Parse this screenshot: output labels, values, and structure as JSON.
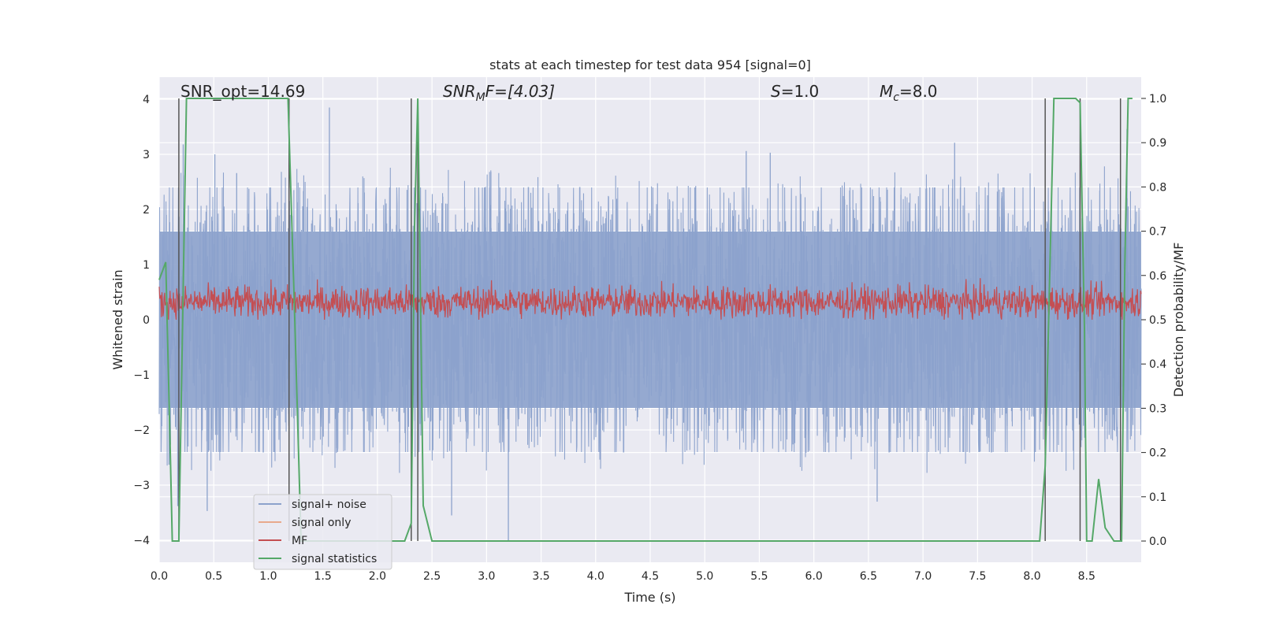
{
  "chart_data": {
    "type": "line",
    "title": "stats at each timestep for test data 954 [signal=0]",
    "xlabel": "Time (s)",
    "ylabel": "Whitened strain",
    "y2label": "Detection probability/MF",
    "xlim": [
      0.0,
      9.0
    ],
    "ylim": [
      -4.4,
      4.4
    ],
    "y2lim": [
      -0.048,
      1.048
    ],
    "grid": true,
    "legend_position": "lower-left",
    "x_ticks": [
      0.0,
      0.5,
      1.0,
      1.5,
      2.0,
      2.5,
      3.0,
      3.5,
      4.0,
      4.5,
      5.0,
      5.5,
      6.0,
      6.5,
      7.0,
      7.5,
      8.0,
      8.5
    ],
    "x_tick_labels": [
      "0.0",
      "0.5",
      "1.0",
      "1.5",
      "2.0",
      "2.5",
      "3.0",
      "3.5",
      "4.0",
      "4.5",
      "5.0",
      "5.5",
      "6.0",
      "6.5",
      "7.0",
      "7.5",
      "8.0",
      "8.5"
    ],
    "y_ticks": [
      -4,
      -3,
      -2,
      -1,
      0,
      1,
      2,
      3,
      4
    ],
    "y_tick_labels": [
      "−4",
      "−3",
      "−2",
      "−1",
      "0",
      "1",
      "2",
      "3",
      "4"
    ],
    "y2_ticks": [
      0.0,
      0.1,
      0.2,
      0.3,
      0.4,
      0.5,
      0.6,
      0.7,
      0.8,
      0.9,
      1.0
    ],
    "y2_tick_labels": [
      "0.0",
      "0.1",
      "0.2",
      "0.3",
      "0.4",
      "0.5",
      "0.6",
      "0.7",
      "0.8",
      "0.9",
      "1.0"
    ],
    "annotations": [
      {
        "main": "SNR_opt=14.69",
        "sub": "",
        "rest": ""
      },
      {
        "main": "SNR",
        "sub": "M",
        "rest": "F=[4.03]"
      },
      {
        "main": "S",
        "sub": "",
        "rest": "=1.0"
      },
      {
        "main": "M",
        "sub": "c",
        "rest": "=8.0"
      }
    ],
    "legend": [
      {
        "label": "signal+ noise",
        "color": "#8ca2cc"
      },
      {
        "label": "signal only",
        "color": "#e8a98c"
      },
      {
        "label": "MF",
        "color": "#c44e52"
      },
      {
        "label": "signal statistics",
        "color": "#55a868"
      }
    ],
    "vlines_x": [
      0.18,
      1.19,
      2.31,
      2.37,
      8.12,
      8.44,
      8.81
    ],
    "series": [
      {
        "name": "signal+ noise",
        "axis": "left",
        "color": "#8ca2cc",
        "envelope_amplitude": 1.6,
        "peak_values": [
          {
            "x": 0.09,
            "y": -2.63
          },
          {
            "x": 0.17,
            "y": -3.38
          },
          {
            "x": 0.22,
            "y": 3.18
          },
          {
            "x": 0.44,
            "y": -3.47
          },
          {
            "x": 0.51,
            "y": 3.0
          },
          {
            "x": 0.71,
            "y": 2.66
          },
          {
            "x": 1.56,
            "y": 3.85
          },
          {
            "x": 2.68,
            "y": -3.55
          },
          {
            "x": 3.2,
            "y": -4.0
          },
          {
            "x": 5.38,
            "y": 3.06
          },
          {
            "x": 5.6,
            "y": 3.03
          },
          {
            "x": 6.58,
            "y": -3.3
          },
          {
            "x": 7.29,
            "y": 3.21
          },
          {
            "x": 8.87,
            "y": 3.46
          }
        ]
      },
      {
        "name": "MF",
        "axis": "right",
        "color": "#c44e52",
        "mean": 0.54,
        "range": [
          0.5,
          0.61
        ]
      },
      {
        "name": "signal statistics",
        "axis": "right",
        "color": "#55a868",
        "x": [
          0.0,
          0.06,
          0.1,
          0.12,
          0.18,
          0.25,
          0.4,
          0.8,
          1.18,
          1.24,
          1.3,
          2.25,
          2.31,
          2.34,
          2.37,
          2.42,
          2.5,
          3.0,
          5.0,
          7.0,
          8.07,
          8.12,
          8.2,
          8.25,
          8.35,
          8.4,
          8.44,
          8.48,
          8.5,
          8.55,
          8.61,
          8.67,
          8.75,
          8.82,
          8.85,
          8.88,
          8.92
        ],
        "y": [
          0.59,
          0.63,
          0.22,
          0.0,
          0.0,
          1.0,
          1.0,
          1.0,
          1.0,
          0.52,
          0.0,
          0.0,
          0.04,
          0.71,
          1.0,
          0.08,
          0.0,
          0.0,
          0.0,
          0.0,
          0.0,
          0.17,
          1.0,
          1.0,
          1.0,
          1.0,
          0.99,
          0.48,
          0.0,
          0.0,
          0.14,
          0.03,
          0.0,
          0.0,
          0.62,
          1.0,
          1.0
        ]
      }
    ]
  }
}
